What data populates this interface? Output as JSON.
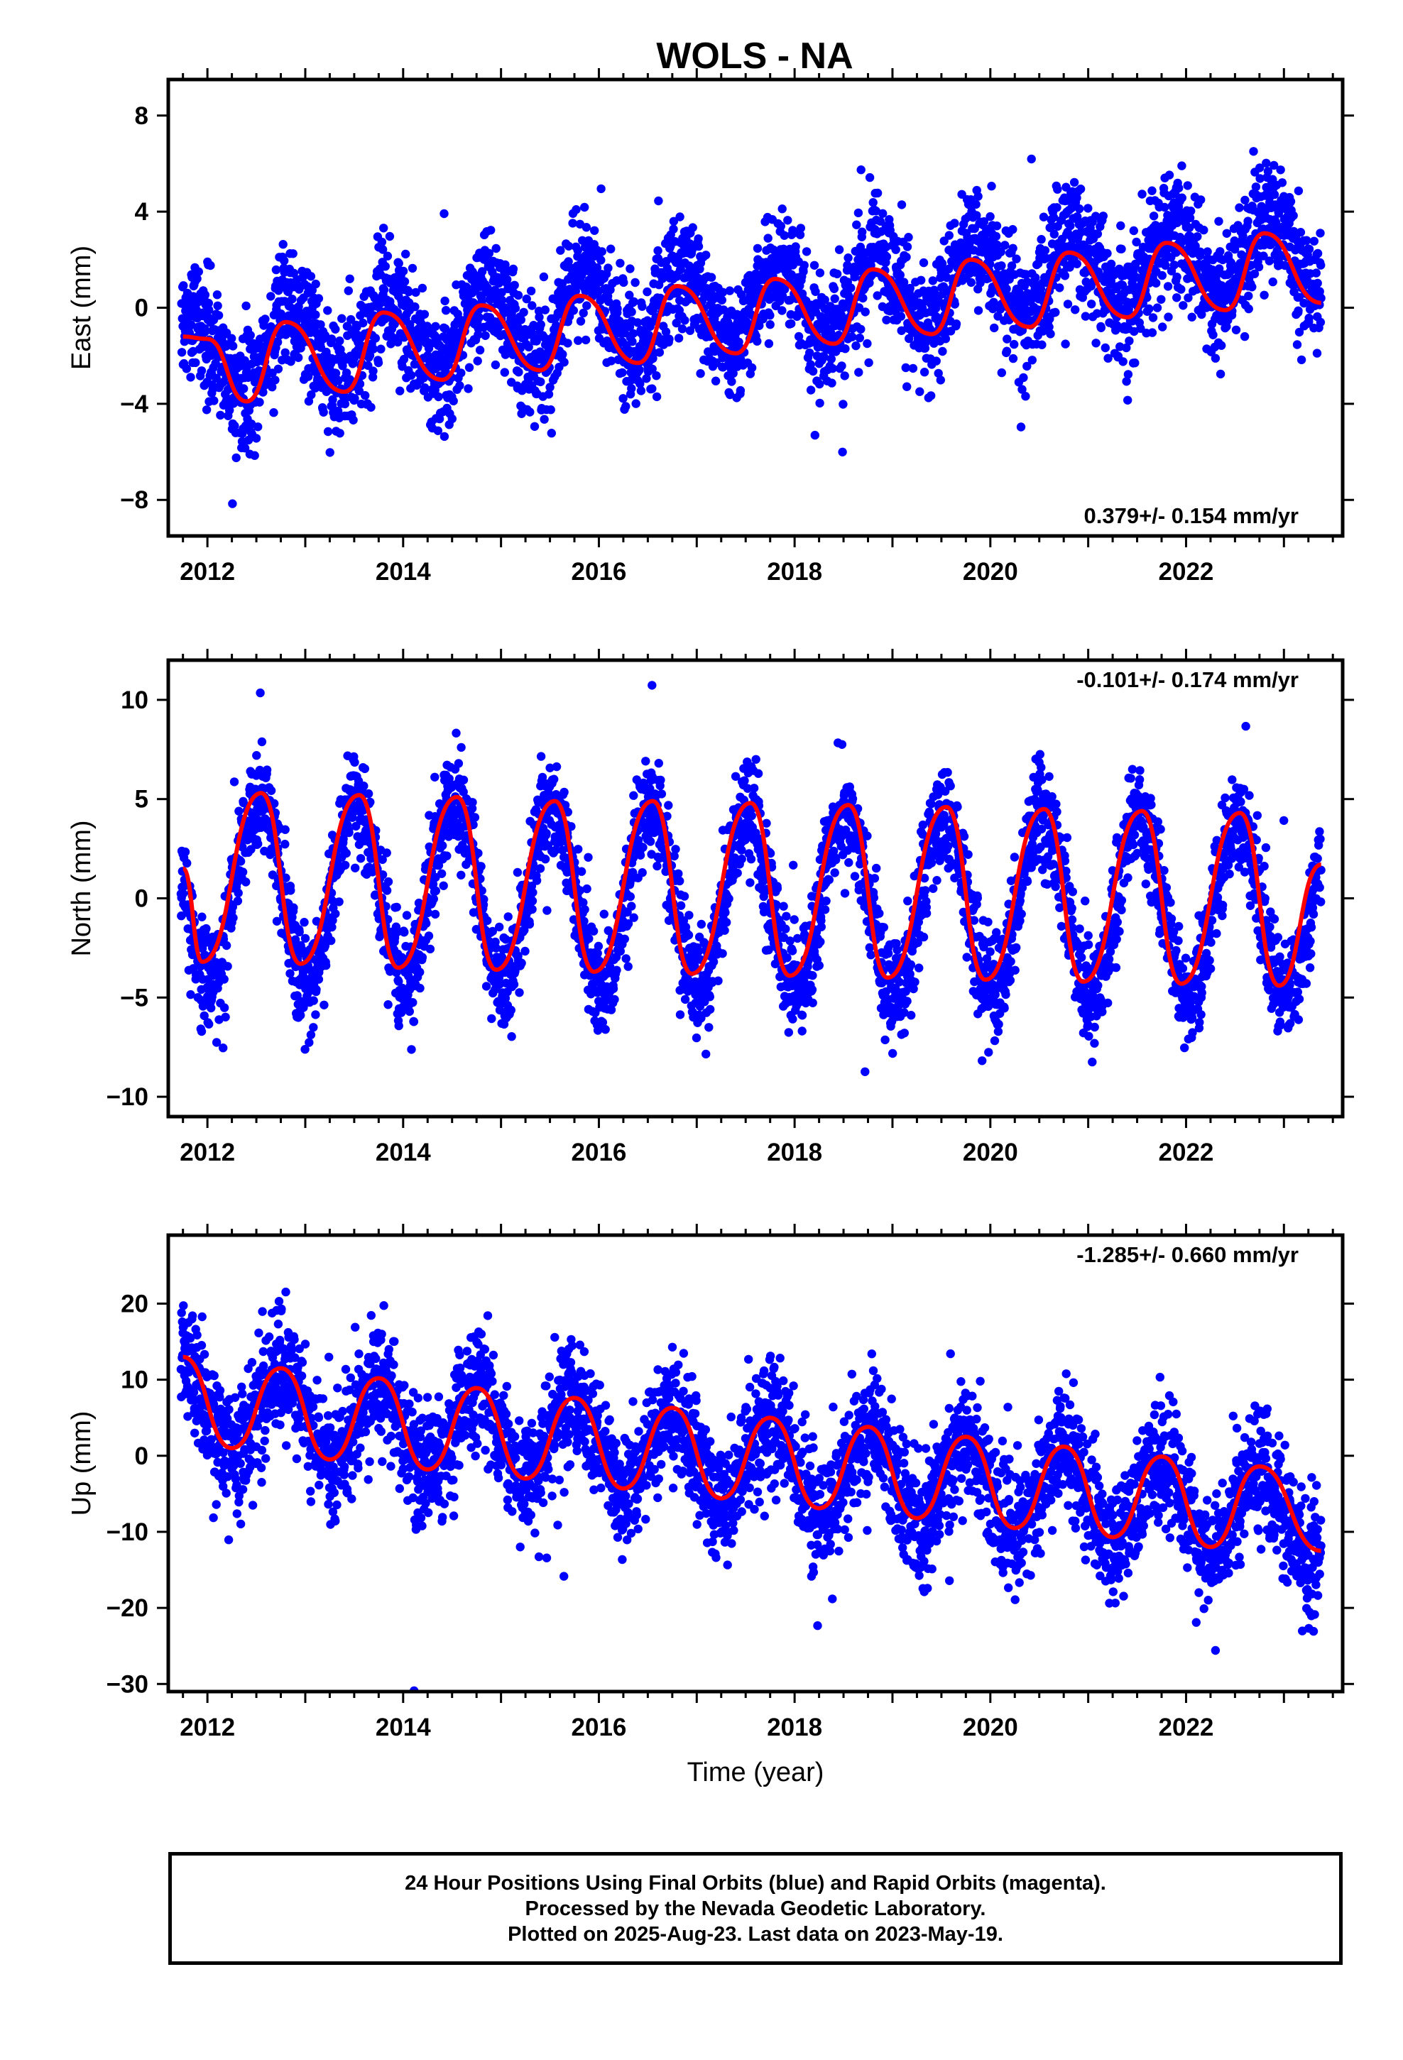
{
  "figure": {
    "title": "WOLS - NA",
    "footer_lines": [
      "24 Hour Positions Using Final Orbits (blue) and Rapid Orbits (magenta).",
      "Processed by the Nevada Geodetic Laboratory.",
      "Plotted on 2025-Aug-23. Last data on 2023-May-19."
    ]
  },
  "colors": {
    "points": "#0000ff",
    "model": "#ff0000",
    "frame": "#000000"
  },
  "chart_data": [
    {
      "type": "scatter",
      "title": "WOLS - NA",
      "xlabel": "",
      "ylabel": "East (mm)",
      "xlim": [
        2011.6,
        2023.6
      ],
      "ylim": [
        -9.5,
        9.5
      ],
      "xticks": [
        "2012",
        "2014",
        "2016",
        "2018",
        "2020",
        "2022"
      ],
      "yticks": [
        "8",
        "4",
        "0",
        "−4",
        "−8"
      ],
      "ytick_values": [
        8,
        4,
        0,
        -4,
        -8
      ],
      "rate_label": "0.379+/- 0.154 mm/yr",
      "rate_position": "bottom-right",
      "data_span": [
        2011.73,
        2023.38
      ],
      "trend": {
        "slope_mm_per_yr": 0.379,
        "value_at_2017": 0.0
      },
      "seasonal": {
        "annual_amplitude_mm": 1.6,
        "annual_peak_fraction": 0.85
      },
      "scatter_spread_mm": 1.2,
      "grid": false,
      "legend": "none",
      "series": [
        {
          "kind": "points",
          "color": "#0000ff"
        },
        {
          "kind": "model",
          "color": "#ff0000"
        }
      ],
      "model_samples": [
        [
          2011.75,
          -1.2
        ],
        [
          2012.0,
          -1.3
        ],
        [
          2012.4,
          -3.9
        ],
        [
          2012.8,
          -0.6
        ],
        [
          2013.4,
          -3.5
        ],
        [
          2013.8,
          -0.2
        ],
        [
          2014.4,
          -3.0
        ],
        [
          2014.8,
          0.1
        ],
        [
          2015.4,
          -2.6
        ],
        [
          2015.8,
          0.5
        ],
        [
          2016.4,
          -2.3
        ],
        [
          2016.8,
          0.9
        ],
        [
          2017.4,
          -1.9
        ],
        [
          2017.8,
          1.2
        ],
        [
          2018.4,
          -1.5
        ],
        [
          2018.8,
          1.6
        ],
        [
          2019.4,
          -1.1
        ],
        [
          2019.8,
          2.0
        ],
        [
          2020.4,
          -0.8
        ],
        [
          2020.8,
          2.3
        ],
        [
          2021.4,
          -0.4
        ],
        [
          2021.8,
          2.7
        ],
        [
          2022.4,
          -0.1
        ],
        [
          2022.8,
          3.1
        ],
        [
          2023.38,
          0.2
        ]
      ]
    },
    {
      "type": "scatter",
      "xlabel": "",
      "ylabel": "North (mm)",
      "xlim": [
        2011.6,
        2023.6
      ],
      "ylim": [
        -11,
        12
      ],
      "xticks": [
        "2012",
        "2014",
        "2016",
        "2018",
        "2020",
        "2022"
      ],
      "yticks": [
        "10",
        "5",
        "0",
        "−5",
        "−10"
      ],
      "ytick_values": [
        10,
        5,
        0,
        -5,
        -10
      ],
      "rate_label": "-0.101+/- 0.174 mm/yr",
      "rate_position": "top-right",
      "data_span": [
        2011.73,
        2023.38
      ],
      "trend": {
        "slope_mm_per_yr": -0.101,
        "value_at_2017": 0.0
      },
      "seasonal": {
        "annual_amplitude_mm": 4.5,
        "annual_peak_fraction": 0.52
      },
      "scatter_spread_mm": 1.3,
      "grid": false,
      "legend": "none",
      "series": [
        {
          "kind": "points",
          "color": "#0000ff"
        },
        {
          "kind": "model",
          "color": "#ff0000"
        }
      ],
      "model_samples": [
        [
          2011.75,
          1.5
        ],
        [
          2011.95,
          -3.2
        ],
        [
          2012.55,
          5.3
        ],
        [
          2012.95,
          -3.3
        ],
        [
          2013.55,
          5.2
        ],
        [
          2013.95,
          -3.5
        ],
        [
          2014.55,
          5.1
        ],
        [
          2014.95,
          -3.6
        ],
        [
          2015.55,
          4.9
        ],
        [
          2015.95,
          -3.7
        ],
        [
          2016.55,
          4.9
        ],
        [
          2016.95,
          -3.8
        ],
        [
          2017.55,
          4.8
        ],
        [
          2017.95,
          -3.9
        ],
        [
          2018.55,
          4.7
        ],
        [
          2018.95,
          -4.0
        ],
        [
          2019.55,
          4.6
        ],
        [
          2019.95,
          -4.1
        ],
        [
          2020.55,
          4.5
        ],
        [
          2020.95,
          -4.2
        ],
        [
          2021.55,
          4.4
        ],
        [
          2021.95,
          -4.3
        ],
        [
          2022.55,
          4.3
        ],
        [
          2022.95,
          -4.4
        ],
        [
          2023.38,
          1.7
        ]
      ]
    },
    {
      "type": "scatter",
      "xlabel": "Time (year)",
      "ylabel": "Up (mm)",
      "xlim": [
        2011.6,
        2023.6
      ],
      "ylim": [
        -31,
        29
      ],
      "xticks": [
        "2012",
        "2014",
        "2016",
        "2018",
        "2020",
        "2022"
      ],
      "yticks": [
        "20",
        "10",
        "0",
        "−10",
        "−20",
        "−30"
      ],
      "ytick_values": [
        20,
        10,
        0,
        -10,
        -20,
        -30
      ],
      "rate_label": "-1.285+/- 0.660 mm/yr",
      "rate_position": "top-right",
      "data_span": [
        2011.73,
        2023.38
      ],
      "trend": {
        "slope_mm_per_yr": -1.285,
        "value_at_2017": 0.0
      },
      "seasonal": {
        "annual_amplitude_mm": 5.5,
        "annual_peak_fraction": 0.75
      },
      "scatter_spread_mm": 4.0,
      "grid": false,
      "legend": "none",
      "series": [
        {
          "kind": "points",
          "color": "#0000ff"
        },
        {
          "kind": "model",
          "color": "#ff0000"
        }
      ],
      "model_samples": [
        [
          2011.75,
          13.0
        ],
        [
          2012.25,
          1.0
        ],
        [
          2012.75,
          11.5
        ],
        [
          2013.25,
          -0.5
        ],
        [
          2013.75,
          10.2
        ],
        [
          2014.25,
          -1.8
        ],
        [
          2014.75,
          8.9
        ],
        [
          2015.25,
          -3.0
        ],
        [
          2015.75,
          7.6
        ],
        [
          2016.25,
          -4.3
        ],
        [
          2016.75,
          6.3
        ],
        [
          2017.25,
          -5.6
        ],
        [
          2017.75,
          5.0
        ],
        [
          2018.25,
          -6.9
        ],
        [
          2018.75,
          3.8
        ],
        [
          2019.25,
          -8.2
        ],
        [
          2019.75,
          2.5
        ],
        [
          2020.25,
          -9.5
        ],
        [
          2020.75,
          1.2
        ],
        [
          2021.25,
          -10.7
        ],
        [
          2021.75,
          -0.1
        ],
        [
          2022.25,
          -12.0
        ],
        [
          2022.75,
          -1.4
        ],
        [
          2023.38,
          -12.5
        ]
      ]
    }
  ]
}
